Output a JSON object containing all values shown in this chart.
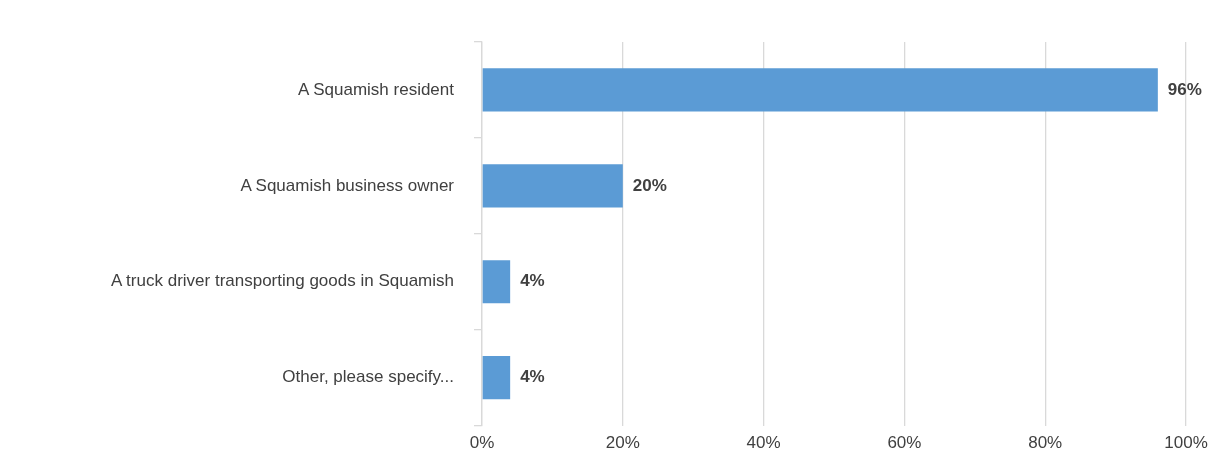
{
  "chart_data": {
    "type": "bar",
    "orientation": "horizontal",
    "categories": [
      "A Squamish resident",
      "A Squamish business owner",
      "A truck driver transporting goods in Squamish",
      "Other, please specify..."
    ],
    "values": [
      96,
      20,
      4,
      4
    ],
    "color": "#5b9bd5",
    "value_labels": [
      "96%",
      "20%",
      "4%",
      "4%"
    ],
    "xlim": [
      0,
      100
    ],
    "xticks": [
      {
        "value": 0,
        "label": "0%"
      },
      {
        "value": 20,
        "label": "20%"
      },
      {
        "value": 40,
        "label": "40%"
      },
      {
        "value": 60,
        "label": "60%"
      },
      {
        "value": 80,
        "label": "80%"
      },
      {
        "value": 100,
        "label": "100%"
      }
    ],
    "grid": "x",
    "legend": false
  }
}
